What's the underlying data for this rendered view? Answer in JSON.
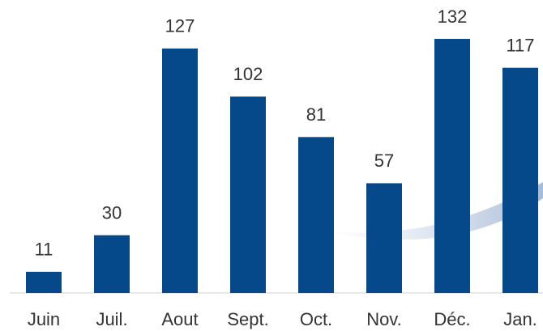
{
  "chart_data": {
    "type": "bar",
    "categories": [
      "Juin",
      "Juil.",
      "Aout",
      "Sept.",
      "Oct.",
      "Nov.",
      "Déc.",
      "Jan."
    ],
    "values": [
      11,
      30,
      127,
      102,
      81,
      57,
      132,
      117
    ],
    "color": "#05498a",
    "ylim": [
      0,
      140
    ]
  }
}
